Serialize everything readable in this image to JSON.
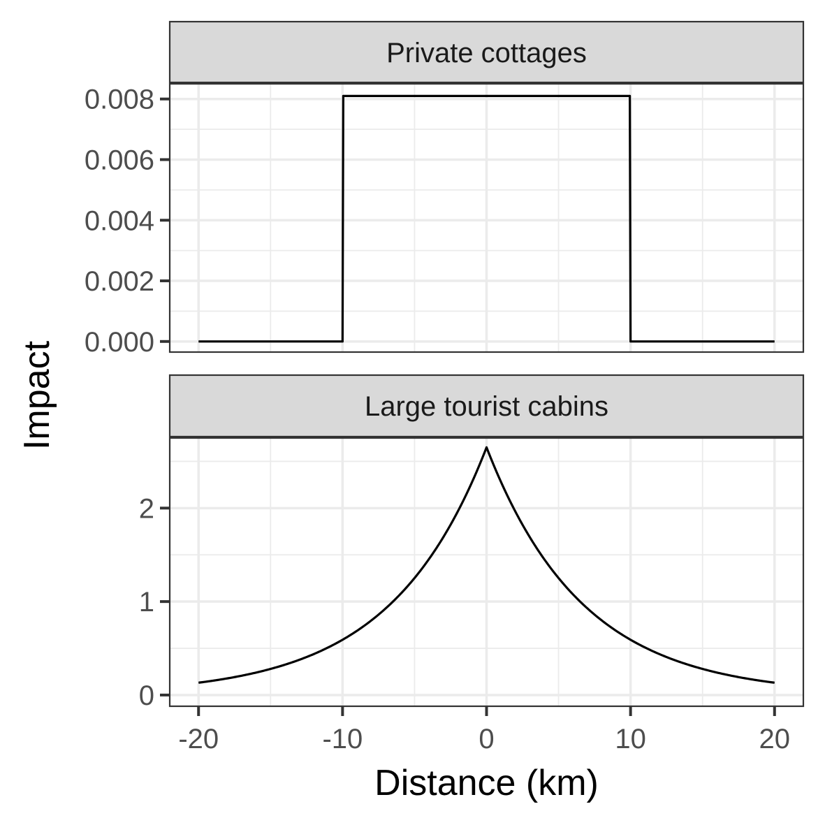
{
  "chart_data": {
    "type": "line",
    "xlabel": "Distance (km)",
    "ylabel": "Impact",
    "xlim": [
      -22,
      22
    ],
    "x_ticks": [
      "-20",
      "-10",
      "0",
      "10",
      "20"
    ],
    "x_tick_values": [
      -20,
      -10,
      0,
      10,
      20
    ],
    "grid": true,
    "panels": [
      {
        "strip": "Private cottages",
        "ylim": [
          -0.00035,
          0.0085
        ],
        "y_ticks": [
          "0.000",
          "0.002",
          "0.004",
          "0.006",
          "0.008"
        ],
        "y_tick_values": [
          0,
          0.002,
          0.004,
          0.006,
          0.008
        ],
        "x": [
          -20,
          -10,
          -9.95,
          9.95,
          10,
          20
        ],
        "y": [
          0,
          0,
          0.0081,
          0.0081,
          0,
          0
        ]
      },
      {
        "strip": "Large tourist cabins",
        "ylim": [
          -0.12,
          2.75
        ],
        "y_ticks": [
          "0",
          "1",
          "2"
        ],
        "y_tick_values": [
          0,
          1,
          2
        ],
        "function": "exponential-decay",
        "peak": 2.65,
        "decay_rate": 0.15,
        "x_range": [
          -20,
          20
        ]
      }
    ]
  }
}
